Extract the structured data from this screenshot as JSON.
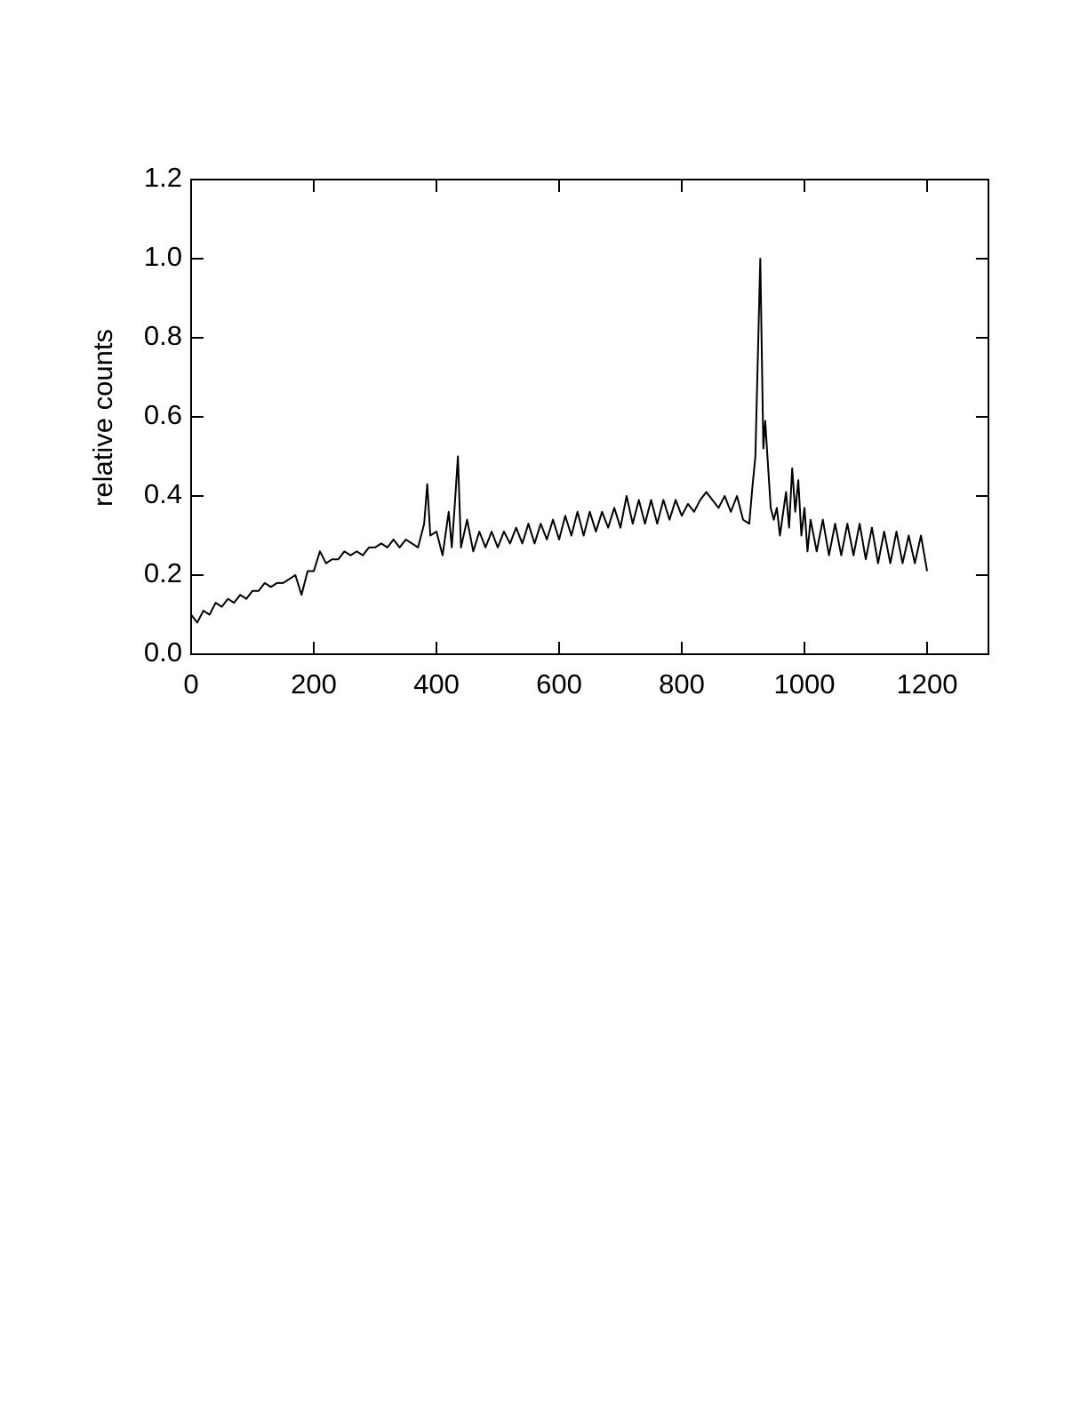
{
  "chart_data": {
    "type": "line",
    "ylabel": "relative counts",
    "x": [
      0,
      10,
      20,
      30,
      40,
      50,
      60,
      70,
      80,
      90,
      100,
      110,
      120,
      130,
      140,
      150,
      160,
      170,
      180,
      190,
      200,
      210,
      220,
      230,
      240,
      250,
      260,
      270,
      280,
      290,
      300,
      310,
      320,
      330,
      340,
      350,
      360,
      370,
      380,
      385,
      390,
      400,
      410,
      420,
      425,
      430,
      435,
      440,
      450,
      460,
      470,
      480,
      490,
      500,
      510,
      520,
      530,
      540,
      550,
      560,
      570,
      580,
      590,
      600,
      610,
      620,
      630,
      640,
      650,
      660,
      670,
      680,
      690,
      700,
      710,
      720,
      730,
      740,
      750,
      760,
      770,
      780,
      790,
      800,
      810,
      820,
      830,
      840,
      850,
      860,
      870,
      880,
      890,
      900,
      910,
      915,
      920,
      928,
      933,
      936,
      945,
      950,
      955,
      960,
      970,
      975,
      980,
      985,
      990,
      995,
      1000,
      1005,
      1010,
      1020,
      1030,
      1040,
      1050,
      1060,
      1070,
      1080,
      1090,
      1100,
      1110,
      1120,
      1130,
      1140,
      1150,
      1160,
      1170,
      1180,
      1190,
      1200
    ],
    "values": [
      0.1,
      0.08,
      0.11,
      0.1,
      0.13,
      0.12,
      0.14,
      0.13,
      0.15,
      0.14,
      0.16,
      0.16,
      0.18,
      0.17,
      0.18,
      0.18,
      0.19,
      0.2,
      0.15,
      0.21,
      0.21,
      0.26,
      0.23,
      0.24,
      0.24,
      0.26,
      0.25,
      0.26,
      0.25,
      0.27,
      0.27,
      0.28,
      0.27,
      0.29,
      0.27,
      0.29,
      0.28,
      0.27,
      0.33,
      0.43,
      0.3,
      0.31,
      0.25,
      0.36,
      0.27,
      0.38,
      0.5,
      0.27,
      0.34,
      0.26,
      0.31,
      0.27,
      0.31,
      0.27,
      0.31,
      0.28,
      0.32,
      0.28,
      0.33,
      0.28,
      0.33,
      0.29,
      0.34,
      0.29,
      0.35,
      0.3,
      0.36,
      0.3,
      0.36,
      0.31,
      0.36,
      0.32,
      0.37,
      0.32,
      0.4,
      0.33,
      0.39,
      0.33,
      0.39,
      0.33,
      0.39,
      0.34,
      0.39,
      0.35,
      0.38,
      0.36,
      0.39,
      0.41,
      0.39,
      0.37,
      0.4,
      0.36,
      0.4,
      0.34,
      0.33,
      0.42,
      0.5,
      1.0,
      0.52,
      0.59,
      0.37,
      0.34,
      0.37,
      0.3,
      0.41,
      0.32,
      0.47,
      0.36,
      0.44,
      0.3,
      0.37,
      0.26,
      0.34,
      0.26,
      0.34,
      0.25,
      0.33,
      0.25,
      0.33,
      0.25,
      0.33,
      0.24,
      0.32,
      0.23,
      0.31,
      0.23,
      0.31,
      0.23,
      0.3,
      0.23,
      0.3,
      0.21
    ],
    "color": "#000000",
    "xlim": [
      0,
      1300
    ],
    "xticks": [
      0,
      200,
      400,
      600,
      800,
      1000,
      1200
    ],
    "ylim": [
      0,
      1.2
    ],
    "yticks": [
      {
        "value": 0,
        "label": "0.0"
      },
      0.2,
      0.4,
      0.6,
      0.8,
      {
        "value": 1,
        "label": "1.0"
      },
      1.2
    ],
    "grid": false
  }
}
